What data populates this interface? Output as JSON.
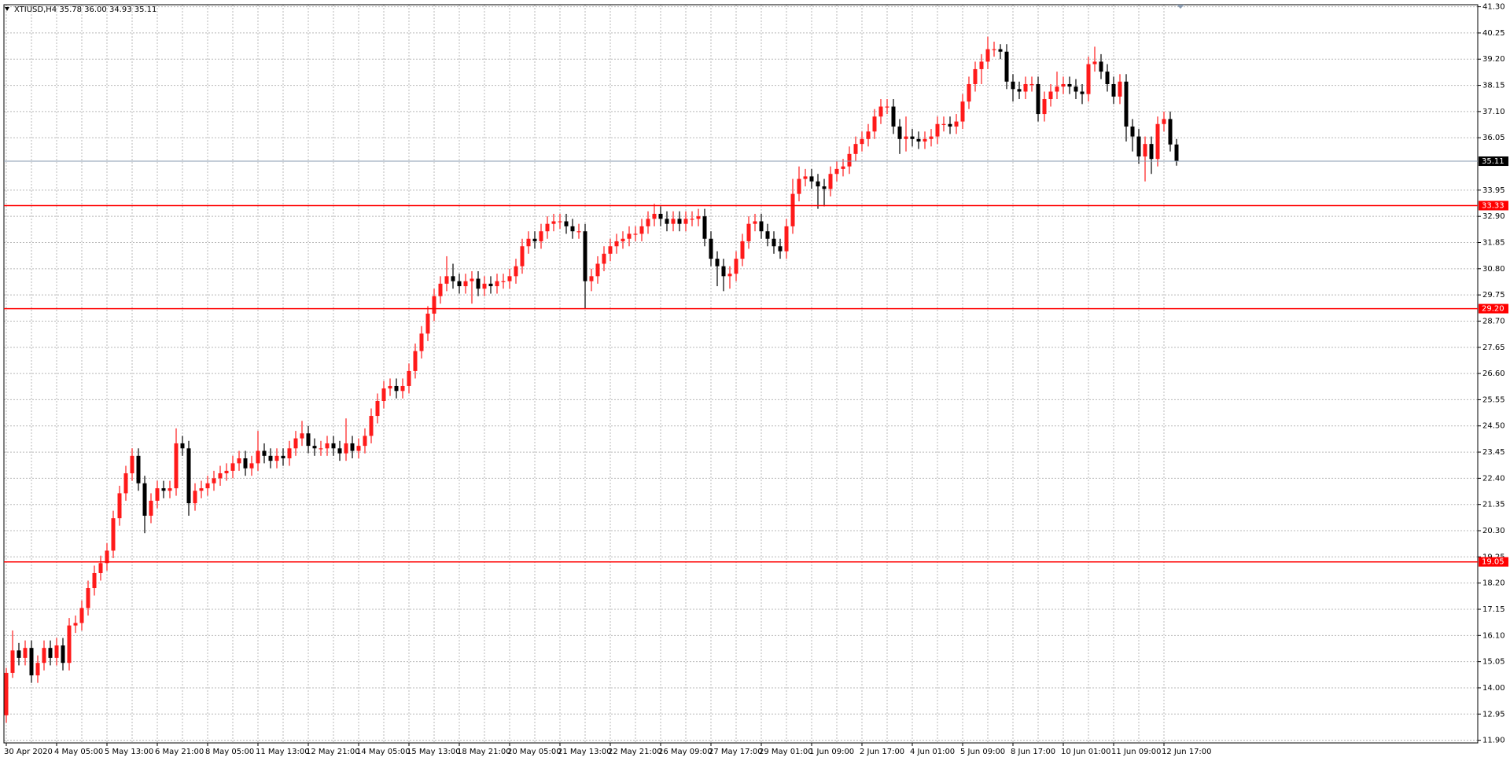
{
  "chart_data": {
    "type": "candlestick",
    "title": "XTIUSD,H4  35.78 36.00 34.93 35.11",
    "up_color": "#ff1a1a",
    "down_color": "#000000",
    "grid": true,
    "ylim": [
      11.9,
      41.3
    ],
    "yticks": [
      {
        "value": 41.3,
        "label": "41.30"
      },
      40.25,
      {
        "value": 39.2,
        "label": "39.20"
      },
      38.15,
      {
        "value": 37.1,
        "label": "37.10"
      },
      36.05,
      33.95,
      {
        "value": 32.9,
        "label": "32.90"
      },
      31.85,
      {
        "value": 30.8,
        "label": "30.80"
      },
      29.75,
      {
        "value": 28.7,
        "label": "28.70"
      },
      27.65,
      {
        "value": 26.6,
        "label": "26.60"
      },
      25.55,
      {
        "value": 24.5,
        "label": "24.50"
      },
      23.45,
      {
        "value": 22.4,
        "label": "22.40"
      },
      21.35,
      {
        "value": 20.3,
        "label": "20.30"
      },
      19.25,
      {
        "value": 18.2,
        "label": "18.20"
      },
      17.15,
      {
        "value": 16.1,
        "label": "16.10"
      },
      15.05,
      {
        "value": 14,
        "label": "14.00"
      },
      12.95,
      {
        "value": 11.9,
        "label": "11.90"
      }
    ],
    "levels": [
      {
        "value": 33.33,
        "color": "#ff0000"
      },
      {
        "value": 29.2,
        "label": "29.20",
        "color": "#ff0000"
      },
      {
        "value": 19.05,
        "color": "#ff0000"
      }
    ],
    "current_price": {
      "value": 35.11,
      "color": "#8a9bb0"
    },
    "categories": [
      "30 Apr 2020",
      null,
      null,
      null,
      null,
      null,
      null,
      null,
      "4 May 05:00",
      null,
      null,
      null,
      null,
      null,
      null,
      null,
      "5 May 13:00",
      null,
      null,
      null,
      null,
      null,
      null,
      null,
      "6 May 21:00",
      null,
      null,
      null,
      null,
      null,
      null,
      null,
      "8 May 05:00",
      null,
      null,
      null,
      null,
      null,
      null,
      null,
      "11 May 13:00",
      null,
      null,
      null,
      null,
      null,
      null,
      null,
      "12 May 21:00",
      null,
      null,
      null,
      null,
      null,
      null,
      null,
      "14 May 05:00",
      null,
      null,
      null,
      null,
      null,
      null,
      null,
      "15 May 13:00",
      null,
      null,
      null,
      null,
      null,
      null,
      null,
      "18 May 21:00",
      null,
      null,
      null,
      null,
      null,
      null,
      null,
      "20 May 05:00",
      null,
      null,
      null,
      null,
      null,
      null,
      null,
      "21 May 13:00",
      null,
      null,
      null,
      null,
      null,
      null,
      null,
      "22 May 21:00",
      null,
      null,
      null,
      null,
      null,
      null,
      null,
      "26 May 09:00",
      null,
      null,
      null,
      null,
      null,
      null,
      null,
      "27 May 17:00",
      null,
      null,
      null,
      null,
      null,
      null,
      null,
      "29 May 01:00",
      null,
      null,
      null,
      null,
      null,
      null,
      null,
      "1 Jun 09:00",
      null,
      null,
      null,
      null,
      null,
      null,
      null,
      "2 Jun 17:00",
      null,
      null,
      null,
      null,
      null,
      null,
      null,
      "4 Jun 01:00",
      null,
      null,
      null,
      null,
      null,
      null,
      null,
      "5 Jun 09:00",
      null,
      null,
      null,
      null,
      null,
      null,
      null,
      "8 Jun 17:00",
      null,
      null,
      null,
      null,
      null,
      null,
      null,
      "10 Jun 01:00",
      null,
      null,
      null,
      null,
      null,
      null,
      null,
      "11 Jun 09:00",
      null,
      null,
      null,
      null,
      null,
      null,
      null,
      "12 Jun 17:00",
      null,
      null
    ],
    "ohlc": [
      [
        12.9,
        14.8,
        12.6,
        14.6
      ],
      [
        14.6,
        16.3,
        14.4,
        15.5
      ],
      [
        15.5,
        15.8,
        14.9,
        15.2
      ],
      [
        15.2,
        15.9,
        14.9,
        15.6
      ],
      [
        15.6,
        15.9,
        14.2,
        14.5
      ],
      [
        14.5,
        15.3,
        14.2,
        15.0
      ],
      [
        15.0,
        15.9,
        14.7,
        15.6
      ],
      [
        15.6,
        15.9,
        14.9,
        15.2
      ],
      [
        15.2,
        16.0,
        14.9,
        15.7
      ],
      [
        15.7,
        16.0,
        14.7,
        15.0
      ],
      [
        15.0,
        16.8,
        14.7,
        16.5
      ],
      [
        16.5,
        16.9,
        16.2,
        16.6
      ],
      [
        16.6,
        17.5,
        16.3,
        17.2
      ],
      [
        17.2,
        18.3,
        16.9,
        18.0
      ],
      [
        18.0,
        18.9,
        17.7,
        18.6
      ],
      [
        18.6,
        19.3,
        18.3,
        19.0
      ],
      [
        19.0,
        19.8,
        18.7,
        19.5
      ],
      [
        19.5,
        21.1,
        19.2,
        20.8
      ],
      [
        20.8,
        22.1,
        20.5,
        21.8
      ],
      [
        21.8,
        22.9,
        21.5,
        22.6
      ],
      [
        22.6,
        23.6,
        22.3,
        23.3
      ],
      [
        23.3,
        23.6,
        21.9,
        22.2
      ],
      [
        22.2,
        22.5,
        20.2,
        20.9
      ],
      [
        20.9,
        21.8,
        20.6,
        21.5
      ],
      [
        21.5,
        22.3,
        21.2,
        22.0
      ],
      [
        22.0,
        22.3,
        21.6,
        21.9
      ],
      [
        21.9,
        22.3,
        21.6,
        22.0
      ],
      [
        22.0,
        24.4,
        21.7,
        23.8
      ],
      [
        23.8,
        24.1,
        23.3,
        23.6
      ],
      [
        23.6,
        23.9,
        20.9,
        21.4
      ],
      [
        21.4,
        22.2,
        21.1,
        21.9
      ],
      [
        21.9,
        22.3,
        21.6,
        22.0
      ],
      [
        22.0,
        22.5,
        21.7,
        22.2
      ],
      [
        22.2,
        22.7,
        21.9,
        22.4
      ],
      [
        22.4,
        22.9,
        22.1,
        22.6
      ],
      [
        22.6,
        23.0,
        22.3,
        22.7
      ],
      [
        22.7,
        23.3,
        22.4,
        23.0
      ],
      [
        23.0,
        23.5,
        22.7,
        23.2
      ],
      [
        23.2,
        23.5,
        22.5,
        22.8
      ],
      [
        22.8,
        23.3,
        22.5,
        23.0
      ],
      [
        23.0,
        24.3,
        22.7,
        23.5
      ],
      [
        23.5,
        23.8,
        23.0,
        23.3
      ],
      [
        23.3,
        23.6,
        22.8,
        23.1
      ],
      [
        23.1,
        23.6,
        22.8,
        23.3
      ],
      [
        23.3,
        23.6,
        22.9,
        23.2
      ],
      [
        23.2,
        23.9,
        22.9,
        23.6
      ],
      [
        23.6,
        24.3,
        23.3,
        24.0
      ],
      [
        24.0,
        24.7,
        23.7,
        24.2
      ],
      [
        24.2,
        24.5,
        23.4,
        23.7
      ],
      [
        23.7,
        24.0,
        23.3,
        23.6
      ],
      [
        23.6,
        23.9,
        23.3,
        23.6
      ],
      [
        23.6,
        24.1,
        23.3,
        23.8
      ],
      [
        23.8,
        24.1,
        23.3,
        23.6
      ],
      [
        23.6,
        23.9,
        23.1,
        23.4
      ],
      [
        23.4,
        24.8,
        23.1,
        23.8
      ],
      [
        23.8,
        24.1,
        23.2,
        23.5
      ],
      [
        23.5,
        24.0,
        23.2,
        23.7
      ],
      [
        23.7,
        24.4,
        23.4,
        24.1
      ],
      [
        24.1,
        25.2,
        23.8,
        24.9
      ],
      [
        24.9,
        25.8,
        24.6,
        25.5
      ],
      [
        25.5,
        26.3,
        25.2,
        26.0
      ],
      [
        26.0,
        26.4,
        25.7,
        26.1
      ],
      [
        26.1,
        26.4,
        25.6,
        25.9
      ],
      [
        25.9,
        26.4,
        25.6,
        26.1
      ],
      [
        26.1,
        27.0,
        25.8,
        26.7
      ],
      [
        26.7,
        27.8,
        26.4,
        27.5
      ],
      [
        27.5,
        28.5,
        27.2,
        28.2
      ],
      [
        28.2,
        29.3,
        27.9,
        29.0
      ],
      [
        29.0,
        30.0,
        28.7,
        29.7
      ],
      [
        29.7,
        30.5,
        29.4,
        30.2
      ],
      [
        30.2,
        31.3,
        29.9,
        30.5
      ],
      [
        30.5,
        31.0,
        30.0,
        30.3
      ],
      [
        30.3,
        30.6,
        29.8,
        30.1
      ],
      [
        30.1,
        30.6,
        29.8,
        30.3
      ],
      [
        30.3,
        30.7,
        29.4,
        30.4
      ],
      [
        30.4,
        30.7,
        29.7,
        30.0
      ],
      [
        30.0,
        30.5,
        29.7,
        30.2
      ],
      [
        30.2,
        30.5,
        29.8,
        30.1
      ],
      [
        30.1,
        30.6,
        29.8,
        30.3
      ],
      [
        30.3,
        30.6,
        30.0,
        30.3
      ],
      [
        30.3,
        30.8,
        30.0,
        30.5
      ],
      [
        30.5,
        31.2,
        30.2,
        30.9
      ],
      [
        30.9,
        32.0,
        30.6,
        31.7
      ],
      [
        31.7,
        32.3,
        31.4,
        32.0
      ],
      [
        32.0,
        32.3,
        31.6,
        31.9
      ],
      [
        31.9,
        32.6,
        31.6,
        32.3
      ],
      [
        32.3,
        32.9,
        32.0,
        32.6
      ],
      [
        32.6,
        33.0,
        32.3,
        32.7
      ],
      [
        32.7,
        33.0,
        32.4,
        32.7
      ],
      [
        32.7,
        33.0,
        32.2,
        32.5
      ],
      [
        32.5,
        32.8,
        32.0,
        32.3
      ],
      [
        32.3,
        32.6,
        32.0,
        32.3
      ],
      [
        32.3,
        32.6,
        29.2,
        30.3
      ],
      [
        30.3,
        30.8,
        29.9,
        30.5
      ],
      [
        30.5,
        31.3,
        30.2,
        31.0
      ],
      [
        31.0,
        31.7,
        30.7,
        31.4
      ],
      [
        31.4,
        32.0,
        31.1,
        31.7
      ],
      [
        31.7,
        32.2,
        31.4,
        31.9
      ],
      [
        31.9,
        32.3,
        31.6,
        32.0
      ],
      [
        32.0,
        32.5,
        31.7,
        32.2
      ],
      [
        32.2,
        32.5,
        31.9,
        32.2
      ],
      [
        32.2,
        32.8,
        31.9,
        32.5
      ],
      [
        32.5,
        33.1,
        32.2,
        32.8
      ],
      [
        32.8,
        33.4,
        32.5,
        33.0
      ],
      [
        33.0,
        33.3,
        32.5,
        32.8
      ],
      [
        32.8,
        33.1,
        32.3,
        32.6
      ],
      [
        32.6,
        33.1,
        32.3,
        32.8
      ],
      [
        32.8,
        33.1,
        32.3,
        32.6
      ],
      [
        32.6,
        33.1,
        32.3,
        32.8
      ],
      [
        32.8,
        33.1,
        32.5,
        32.8
      ],
      [
        32.8,
        33.2,
        32.5,
        32.9
      ],
      [
        32.9,
        33.2,
        31.7,
        32.0
      ],
      [
        32.0,
        32.3,
        30.9,
        31.2
      ],
      [
        31.2,
        31.5,
        30.1,
        30.9
      ],
      [
        30.9,
        31.2,
        29.9,
        30.5
      ],
      [
        30.5,
        30.9,
        30.0,
        30.6
      ],
      [
        30.6,
        31.5,
        30.3,
        31.2
      ],
      [
        31.2,
        32.2,
        30.9,
        31.9
      ],
      [
        31.9,
        32.9,
        31.6,
        32.6
      ],
      [
        32.6,
        33.0,
        32.3,
        32.7
      ],
      [
        32.7,
        33.0,
        32.0,
        32.3
      ],
      [
        32.3,
        32.6,
        31.7,
        32.0
      ],
      [
        32.0,
        32.3,
        31.4,
        31.7
      ],
      [
        31.7,
        32.0,
        31.2,
        31.5
      ],
      [
        31.5,
        32.8,
        31.2,
        32.5
      ],
      [
        32.5,
        34.4,
        32.2,
        33.8
      ],
      [
        33.8,
        34.9,
        33.5,
        34.4
      ],
      [
        34.4,
        34.8,
        34.1,
        34.5
      ],
      [
        34.5,
        34.8,
        34.0,
        34.3
      ],
      [
        34.3,
        34.6,
        33.2,
        34.1
      ],
      [
        34.1,
        34.4,
        33.3,
        34.0
      ],
      [
        34.0,
        34.9,
        33.7,
        34.6
      ],
      [
        34.6,
        35.1,
        34.3,
        34.8
      ],
      [
        34.8,
        35.2,
        34.5,
        34.9
      ],
      [
        34.9,
        35.7,
        34.6,
        35.4
      ],
      [
        35.4,
        36.1,
        35.1,
        35.8
      ],
      [
        35.8,
        36.3,
        35.5,
        36.0
      ],
      [
        36.0,
        36.6,
        35.7,
        36.3
      ],
      [
        36.3,
        37.2,
        36.0,
        36.9
      ],
      [
        36.9,
        37.6,
        36.6,
        37.3
      ],
      [
        37.3,
        37.6,
        37.0,
        37.3
      ],
      [
        37.3,
        37.6,
        36.2,
        36.5
      ],
      [
        36.5,
        36.8,
        35.4,
        36.0
      ],
      [
        36.0,
        36.9,
        35.5,
        36.1
      ],
      [
        36.1,
        36.4,
        35.7,
        36.0
      ],
      [
        36.0,
        36.3,
        35.6,
        35.9
      ],
      [
        35.9,
        36.3,
        35.6,
        36.0
      ],
      [
        36.0,
        36.4,
        35.7,
        36.1
      ],
      [
        36.1,
        36.9,
        35.8,
        36.6
      ],
      [
        36.6,
        36.9,
        36.3,
        36.6
      ],
      [
        36.6,
        36.9,
        36.2,
        36.5
      ],
      [
        36.5,
        37.0,
        36.2,
        36.7
      ],
      [
        36.7,
        37.8,
        36.4,
        37.5
      ],
      [
        37.5,
        38.5,
        37.2,
        38.2
      ],
      [
        38.2,
        39.1,
        37.9,
        38.8
      ],
      [
        38.8,
        39.4,
        38.2,
        39.1
      ],
      [
        39.1,
        40.1,
        38.8,
        39.6
      ],
      [
        39.6,
        39.9,
        39.3,
        39.6
      ],
      [
        39.6,
        39.8,
        39.2,
        39.5
      ],
      [
        39.5,
        39.8,
        38.0,
        38.3
      ],
      [
        38.3,
        38.6,
        37.5,
        38.0
      ],
      [
        38.0,
        38.3,
        37.6,
        37.9
      ],
      [
        37.9,
        38.5,
        37.6,
        38.2
      ],
      [
        38.2,
        38.5,
        37.9,
        38.2
      ],
      [
        38.2,
        38.5,
        36.7,
        37.0
      ],
      [
        37.0,
        37.9,
        36.7,
        37.6
      ],
      [
        37.6,
        38.2,
        37.3,
        37.9
      ],
      [
        37.9,
        38.7,
        37.6,
        38.1
      ],
      [
        38.1,
        38.5,
        37.8,
        38.2
      ],
      [
        38.2,
        38.5,
        37.8,
        38.1
      ],
      [
        38.1,
        38.4,
        37.6,
        37.9
      ],
      [
        37.9,
        38.2,
        37.4,
        37.8
      ],
      [
        37.8,
        39.3,
        37.5,
        39.0
      ],
      [
        39.0,
        39.7,
        38.7,
        39.1
      ],
      [
        39.1,
        39.4,
        38.4,
        38.7
      ],
      [
        38.7,
        39.0,
        37.9,
        38.2
      ],
      [
        38.2,
        38.5,
        37.4,
        37.7
      ],
      [
        37.7,
        38.6,
        37.4,
        38.3
      ],
      [
        38.3,
        38.6,
        35.9,
        36.5
      ],
      [
        36.5,
        36.8,
        35.5,
        36.1
      ],
      [
        36.1,
        36.4,
        35.0,
        35.3
      ],
      [
        35.3,
        36.1,
        34.3,
        35.8
      ],
      [
        35.8,
        36.1,
        34.6,
        35.2
      ],
      [
        35.2,
        36.9,
        34.9,
        36.6
      ],
      [
        36.6,
        37.1,
        36.3,
        36.8
      ],
      [
        36.8,
        37.1,
        35.5,
        35.78
      ],
      [
        35.78,
        36.0,
        34.93,
        35.11
      ]
    ]
  }
}
